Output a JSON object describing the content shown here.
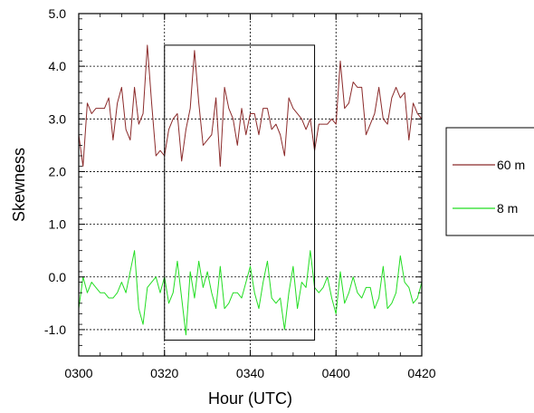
{
  "chart_data": {
    "type": "line",
    "xlabel": "Hour (UTC)",
    "ylabel": "Skewness",
    "xlim": [
      0,
      80
    ],
    "ylim": [
      -1.5,
      5.0
    ],
    "x_ticks": [
      0,
      20,
      40,
      60,
      80
    ],
    "x_tick_labels": [
      "0300",
      "0320",
      "0340",
      "0400",
      "0420"
    ],
    "y_ticks": [
      -1.0,
      0.0,
      1.0,
      2.0,
      3.0,
      4.0,
      5.0
    ],
    "y_tick_labels": [
      "-1.0",
      "0.0",
      "1.0",
      "2.0",
      "3.0",
      "4.0",
      "5.0"
    ],
    "grid": "dashed",
    "legend": "right",
    "highlight_box": {
      "x": [
        20,
        55
      ],
      "y": [
        -1.2,
        4.4
      ]
    },
    "series": [
      {
        "name": "60 m",
        "color": "#8b2a2a",
        "x": [
          0,
          1,
          2,
          3,
          4,
          5,
          6,
          7,
          8,
          9,
          10,
          11,
          12,
          13,
          14,
          15,
          16,
          17,
          18,
          19,
          20,
          21,
          22,
          23,
          24,
          25,
          26,
          27,
          28,
          29,
          30,
          31,
          32,
          33,
          34,
          35,
          36,
          37,
          38,
          39,
          40,
          41,
          42,
          43,
          44,
          45,
          46,
          47,
          48,
          49,
          50,
          51,
          52,
          53,
          54,
          55,
          56,
          57,
          58,
          59,
          60,
          61,
          62,
          63,
          64,
          65,
          66,
          67,
          68,
          69,
          70,
          71,
          72,
          73,
          74,
          75,
          76,
          77,
          78,
          79,
          80
        ],
        "values": [
          2.7,
          2.1,
          3.3,
          3.1,
          3.2,
          3.2,
          3.2,
          3.4,
          2.6,
          3.3,
          3.6,
          2.8,
          2.6,
          3.6,
          2.9,
          3.1,
          4.4,
          3.3,
          2.3,
          2.4,
          2.3,
          2.8,
          3.0,
          3.1,
          2.2,
          2.8,
          3.2,
          4.3,
          3.3,
          2.5,
          2.6,
          2.7,
          3.4,
          2.1,
          3.6,
          3.2,
          3.0,
          2.5,
          3.2,
          2.7,
          3.1,
          3.1,
          2.7,
          3.2,
          3.2,
          2.8,
          2.9,
          2.7,
          2.3,
          3.4,
          3.2,
          3.1,
          3.0,
          2.8,
          3.0,
          2.4,
          2.9,
          2.9,
          2.9,
          3.0,
          2.9,
          4.1,
          3.2,
          3.3,
          3.7,
          3.6,
          3.6,
          2.7,
          2.9,
          3.1,
          3.6,
          3.0,
          2.9,
          3.4,
          3.6,
          3.4,
          3.5,
          2.6,
          3.3,
          3.1,
          3.0
        ]
      },
      {
        "name": "8 m",
        "color": "#22dd22",
        "x": [
          0,
          1,
          2,
          3,
          4,
          5,
          6,
          7,
          8,
          9,
          10,
          11,
          12,
          13,
          14,
          15,
          16,
          17,
          18,
          19,
          20,
          21,
          22,
          23,
          24,
          25,
          26,
          27,
          28,
          29,
          30,
          31,
          32,
          33,
          34,
          35,
          36,
          37,
          38,
          39,
          40,
          41,
          42,
          43,
          44,
          45,
          46,
          47,
          48,
          49,
          50,
          51,
          52,
          53,
          54,
          55,
          56,
          57,
          58,
          59,
          60,
          61,
          62,
          63,
          64,
          65,
          66,
          67,
          68,
          69,
          70,
          71,
          72,
          73,
          74,
          75,
          76,
          77,
          78,
          79,
          80
        ],
        "values": [
          -0.6,
          0.0,
          -0.3,
          -0.1,
          -0.2,
          -0.3,
          -0.3,
          -0.4,
          -0.4,
          -0.3,
          -0.1,
          -0.3,
          0.1,
          0.5,
          -0.6,
          -0.9,
          -0.2,
          -0.1,
          0.0,
          -0.3,
          0.0,
          -0.5,
          -0.3,
          0.3,
          -0.4,
          -1.1,
          0.1,
          -0.4,
          0.3,
          -0.2,
          0.1,
          -0.3,
          -0.6,
          0.2,
          -0.6,
          -0.5,
          -0.3,
          -0.3,
          -0.4,
          -0.1,
          0.2,
          -0.3,
          -0.6,
          -0.1,
          0.3,
          -0.4,
          -0.5,
          -0.4,
          -1.0,
          -0.3,
          0.2,
          -0.6,
          -0.1,
          -0.2,
          0.5,
          -0.2,
          -0.3,
          -0.2,
          0.0,
          -0.4,
          -0.7,
          0.1,
          -0.5,
          -0.3,
          0.0,
          -0.3,
          -0.4,
          -0.2,
          -0.2,
          -0.6,
          -0.4,
          0.2,
          -0.6,
          -0.5,
          -0.3,
          0.4,
          -0.1,
          -0.2,
          -0.5,
          -0.4,
          -0.1
        ]
      }
    ]
  }
}
